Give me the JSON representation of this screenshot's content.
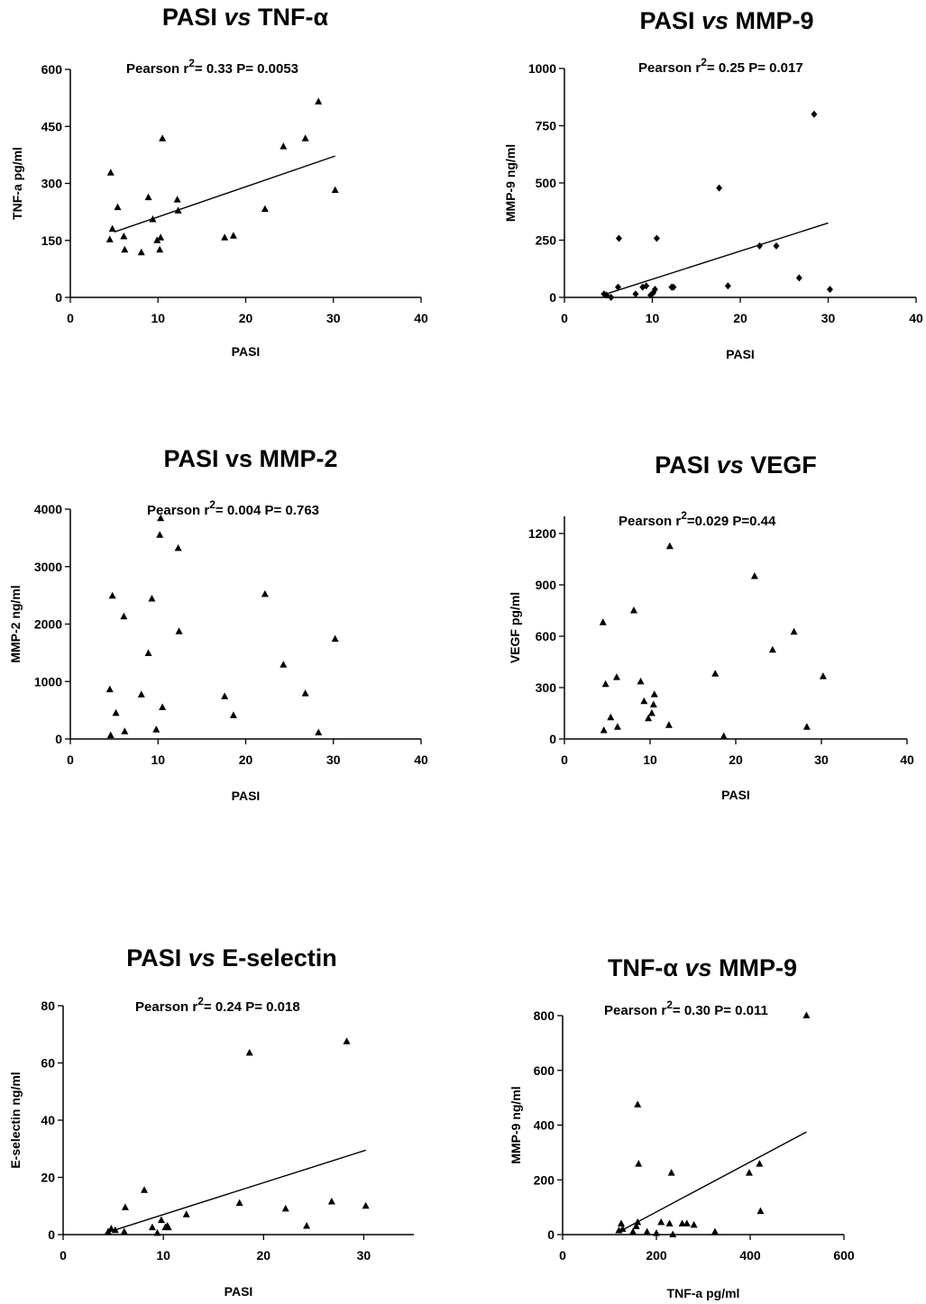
{
  "chart_data": [
    {
      "type": "scatter",
      "title": "PASI vs TNF-α",
      "title_parts": [
        "PASI ",
        "vs",
        " TNF-α"
      ],
      "stats": {
        "label": "Pearson  r",
        "sup": "2",
        "value": "= 0.33",
        "p": "P= 0.0053"
      },
      "xlabel": "PASI",
      "ylabel": "TNF-a  pg/ml",
      "xlim": [
        0,
        40
      ],
      "ylim": [
        0,
        600
      ],
      "xticks": [
        "0",
        "10",
        "20",
        "30",
        "40"
      ],
      "yticks": [
        "0",
        "150",
        "300",
        "450",
        "600"
      ],
      "marker": "triangle",
      "regression": {
        "x": [
          5,
          30.2
        ],
        "y": [
          172,
          372
        ]
      },
      "points": {
        "x": [
          4.6,
          4.8,
          5.4,
          6.1,
          6.2,
          8.1,
          8.9,
          9.4,
          9.9,
          10.2,
          10.3,
          10.5,
          12.2,
          12.3,
          17.6,
          18.6,
          22.2,
          24.3,
          26.8,
          28.3,
          30.2,
          4.5
        ],
        "y": [
          328,
          180,
          237,
          160,
          125,
          118,
          263,
          205,
          150,
          125,
          157,
          418,
          257,
          228,
          157,
          162,
          232,
          397,
          418,
          515,
          282,
          152
        ]
      }
    },
    {
      "type": "scatter",
      "title": "PASI vs MMP-9",
      "title_parts": [
        "PASI ",
        "vs",
        " MMP-9"
      ],
      "stats": {
        "label": "Pearson  r",
        "sup": "2",
        "value": "= 0.25",
        "p": "P= 0.017"
      },
      "xlabel": "PASI",
      "ylabel": "MMP-9  ng/ml",
      "xlim": [
        0,
        40
      ],
      "ylim": [
        0,
        1000
      ],
      "xticks": [
        "0",
        "10",
        "20",
        "30",
        "40"
      ],
      "yticks": [
        "0",
        "250",
        "500",
        "750",
        "1000"
      ],
      "marker": "diamond",
      "regression": {
        "x": [
          5,
          30
        ],
        "y": [
          18,
          325
        ]
      },
      "points": {
        "x": [
          4.5,
          4.8,
          5.3,
          6.1,
          6.2,
          8.1,
          8.9,
          9.3,
          9.8,
          10.1,
          10.3,
          10.5,
          12.2,
          12.4,
          17.6,
          18.6,
          22.2,
          24.1,
          26.7,
          28.4,
          30.2
        ],
        "y": [
          15,
          10,
          0,
          45,
          258,
          15,
          45,
          50,
          10,
          20,
          35,
          258,
          45,
          45,
          478,
          50,
          225,
          225,
          85,
          800,
          35
        ]
      }
    },
    {
      "type": "scatter",
      "title": "PASI vs MMP-2",
      "title_parts": [
        "PASI vs MMP-2"
      ],
      "stats": {
        "label": "Pearson  r",
        "sup": "2",
        "value": "= 0.004",
        "p": "P= 0.763"
      },
      "xlabel": "PASI",
      "ylabel": "MMP-2  ng/ml",
      "xlim": [
        0,
        40
      ],
      "ylim": [
        0,
        4000
      ],
      "xticks": [
        "0",
        "10",
        "20",
        "30",
        "40"
      ],
      "yticks": [
        "0",
        "1000",
        "2000",
        "3000",
        "4000"
      ],
      "marker": "triangle",
      "regression": null,
      "points": {
        "x": [
          4.5,
          4.6,
          4.8,
          5.2,
          6.1,
          6.2,
          8.1,
          8.9,
          9.3,
          9.8,
          10.2,
          10.3,
          10.5,
          12.3,
          12.4,
          17.6,
          18.6,
          22.2,
          24.3,
          26.8,
          28.3,
          30.2
        ],
        "y": [
          860,
          60,
          2490,
          450,
          2130,
          130,
          770,
          1490,
          2440,
          160,
          3550,
          3840,
          550,
          3320,
          1870,
          740,
          410,
          2520,
          1290,
          790,
          110,
          1740
        ]
      }
    },
    {
      "type": "scatter",
      "title": "PASI vs VEGF",
      "title_parts": [
        "PASI ",
        "vs",
        " VEGF"
      ],
      "stats": {
        "label": "Pearson  r",
        "sup": "2",
        "value": "=0.029",
        "p": "P=0.44"
      },
      "xlabel": "PASI",
      "ylabel": "VEGF pg/ml",
      "xlim": [
        0,
        40
      ],
      "ylim": [
        0,
        1300
      ],
      "xticks": [
        "0",
        "10",
        "20",
        "30",
        "40"
      ],
      "yticks": [
        "0",
        "300",
        "600",
        "900",
        "1200"
      ],
      "marker": "triangle",
      "regression": null,
      "points": {
        "x": [
          4.5,
          4.6,
          4.8,
          5.4,
          6.1,
          6.2,
          8.1,
          8.9,
          9.3,
          9.8,
          10.2,
          10.4,
          10.5,
          12.2,
          12.3,
          17.6,
          18.6,
          22.2,
          24.3,
          26.8,
          28.3,
          30.2
        ],
        "y": [
          680,
          50,
          320,
          125,
          360,
          70,
          750,
          335,
          220,
          120,
          150,
          200,
          260,
          80,
          1125,
          380,
          15,
          950,
          520,
          625,
          70,
          365
        ]
      }
    },
    {
      "type": "scatter",
      "title": "PASI vs E-selectin",
      "title_parts": [
        "PASI ",
        "vs",
        " E-selectin"
      ],
      "stats": {
        "label": "Pearson  r",
        "sup": "2",
        "value": "= 0.24",
        "p": "P= 0.018"
      },
      "xlabel": "PASI",
      "ylabel": "E-selectin  ng/ml",
      "xlim": [
        0,
        35
      ],
      "ylim": [
        0,
        80
      ],
      "xticks": [
        "0",
        "10",
        "20",
        "30"
      ],
      "yticks": [
        "0",
        "20",
        "40",
        "60",
        "80"
      ],
      "marker": "triangle",
      "regression": {
        "x": [
          4.6,
          30.2
        ],
        "y": [
          1,
          29.5
        ]
      },
      "points": {
        "x": [
          4.5,
          4.8,
          5.2,
          6.1,
          6.2,
          8.1,
          8.9,
          9.4,
          9.8,
          10.2,
          10.4,
          10.5,
          12.3,
          17.6,
          18.6,
          22.2,
          24.3,
          26.8,
          28.3,
          30.2
        ],
        "y": [
          1,
          2,
          1.5,
          1,
          9.5,
          15.5,
          2.5,
          0.5,
          5,
          2.5,
          3,
          2.5,
          7,
          11,
          63.5,
          9,
          3,
          11.5,
          67.5,
          10
        ]
      }
    },
    {
      "type": "scatter",
      "title": "TNF-α vs MMP-9",
      "title_parts": [
        "TNF-α ",
        "vs",
        " MMP-9"
      ],
      "stats": {
        "label": "Pearson  r",
        "sup": "2",
        "value": "= 0.30",
        "p": "P= 0.011"
      },
      "xlabel": "TNF-a pg/ml",
      "ylabel": "MMP-9  ng/ml",
      "xlim": [
        0,
        600
      ],
      "ylim": [
        0,
        800
      ],
      "xticks": [
        "0",
        "200",
        "400",
        "600"
      ],
      "yticks": [
        "0",
        "200",
        "400",
        "600",
        "800"
      ],
      "marker": "triangle",
      "regression": {
        "x": [
          120,
          520
        ],
        "y": [
          10,
          375
        ]
      },
      "points": {
        "x": [
          120,
          125,
          128,
          150,
          157,
          160,
          160,
          162,
          180,
          200,
          210,
          228,
          232,
          235,
          255,
          265,
          280,
          325,
          398,
          420,
          422,
          520
        ],
        "y": [
          15,
          40,
          20,
          10,
          30,
          475,
          45,
          258,
          10,
          5,
          45,
          40,
          225,
          0,
          40,
          40,
          35,
          10,
          225,
          258,
          85,
          800
        ]
      }
    }
  ]
}
